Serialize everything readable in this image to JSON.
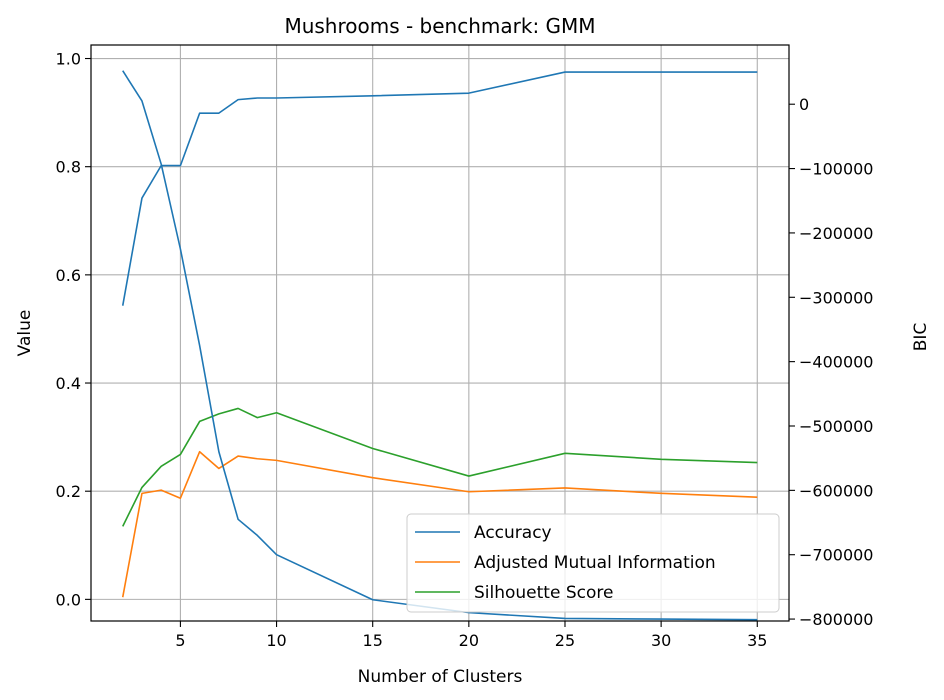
{
  "chart_data": {
    "type": "line",
    "title": "Mushrooms - benchmark: GMM",
    "xlabel": "Number of Clusters",
    "ylabel": "Value",
    "y2label": "BIC",
    "xlim": [
      0.35,
      36.65
    ],
    "ylim": [
      -0.04,
      1.025
    ],
    "y2lim": [
      -803000,
      92000
    ],
    "xticks": [
      5,
      10,
      15,
      20,
      25,
      30,
      35
    ],
    "yticks": [
      0.0,
      0.2,
      0.4,
      0.6,
      0.8,
      1.0
    ],
    "yticklabels": [
      "0.0",
      "0.2",
      "0.4",
      "0.6",
      "0.8",
      "1.0"
    ],
    "y2ticks": [
      0,
      -100000,
      -200000,
      -300000,
      -400000,
      -500000,
      -600000,
      -700000,
      -800000
    ],
    "y2ticklabels": [
      "0",
      "−100000",
      "−200000",
      "−300000",
      "−400000",
      "−500000",
      "−600000",
      "−700000",
      "−800000"
    ],
    "grid": true,
    "legend_position": "lower-right",
    "x": [
      2,
      3,
      4,
      5,
      6,
      7,
      8,
      9,
      10,
      15,
      20,
      25,
      30,
      35
    ],
    "series": [
      {
        "name": "Accuracy",
        "color": "#1f77b4",
        "axis": "left",
        "values": [
          0.543,
          0.742,
          0.802,
          0.802,
          0.899,
          0.899,
          0.924,
          0.927,
          0.927,
          0.931,
          0.936,
          0.975,
          0.975,
          0.975
        ]
      },
      {
        "name": "Adjusted Mutual Information",
        "color": "#ff7f0e",
        "axis": "left",
        "values": [
          0.004,
          0.196,
          0.202,
          0.187,
          0.273,
          0.242,
          0.265,
          0.26,
          0.257,
          0.225,
          0.199,
          0.206,
          0.196,
          0.189
        ]
      },
      {
        "name": "Silhouette Score",
        "color": "#2ca02c",
        "axis": "left",
        "values": [
          0.135,
          0.207,
          0.246,
          0.268,
          0.329,
          0.343,
          0.353,
          0.336,
          0.345,
          0.279,
          0.228,
          0.27,
          0.259,
          0.253
        ]
      },
      {
        "name": "BIC",
        "color": "#1f77b4",
        "axis": "right",
        "values": [
          52000,
          5000,
          -93000,
          -225000,
          -375000,
          -540000,
          -645000,
          -670000,
          -700000,
          -770000,
          -790000,
          -799000,
          -800000,
          -801000
        ]
      }
    ],
    "legend": [
      "Accuracy",
      "Adjusted Mutual Information",
      "Silhouette Score"
    ]
  }
}
